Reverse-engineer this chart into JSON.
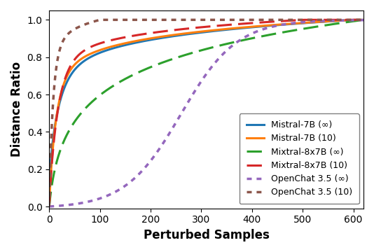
{
  "title": "",
  "xlabel": "Perturbed Samples",
  "ylabel": "Distance Ratio",
  "xlim": [
    0,
    620
  ],
  "ylim": [
    -0.01,
    1.05
  ],
  "xticks": [
    0,
    100,
    200,
    300,
    400,
    500,
    600
  ],
  "yticks": [
    0.0,
    0.2,
    0.4,
    0.6,
    0.8,
    1.0
  ],
  "curves": [
    {
      "label": "Mistral-7B (∞)",
      "color": "#1f77b4",
      "linestyle": "solid",
      "linewidth": 2.2
    },
    {
      "label": "Mistral-7B (10)",
      "color": "#ff7f0e",
      "linestyle": "solid",
      "linewidth": 2.2
    },
    {
      "label": "Mixtral-8x7B (∞)",
      "color": "#2ca02c",
      "linestyle": "dashed",
      "linewidth": 2.2
    },
    {
      "label": "Mixtral-8x7B (10)",
      "color": "#d62728",
      "linestyle": "dashed",
      "linewidth": 2.2
    },
    {
      "label": "OpenChat 3.5 (∞)",
      "color": "#9467bd",
      "linestyle": "dotted",
      "linewidth": 2.5
    },
    {
      "label": "OpenChat 3.5 (10)",
      "color": "#8c564b",
      "linestyle": "dotted",
      "linewidth": 2.5
    }
  ],
  "legend_loc": "lower right",
  "legend_fontsize": 9,
  "xlabel_fontsize": 12,
  "ylabel_fontsize": 12
}
